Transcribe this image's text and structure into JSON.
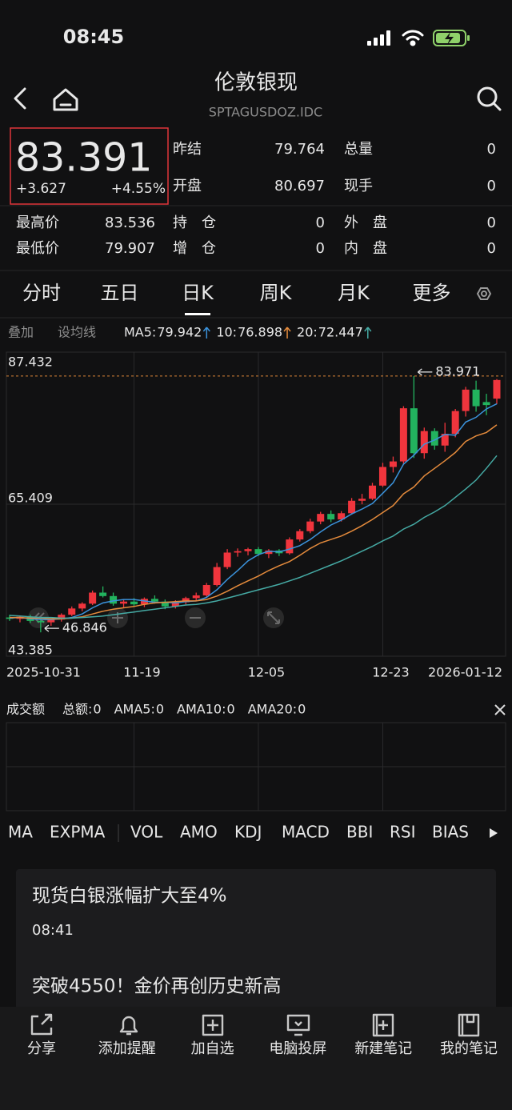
{
  "status_bar": {
    "time": "08:45"
  },
  "header": {
    "title": "伦敦银现",
    "subtitle": "SPTAGUSDOZ.IDC"
  },
  "quote": {
    "price": 83.391,
    "change": "+3.627",
    "change_pct": "+4.55%",
    "stats_top": [
      [
        {
          "label": "昨结",
          "value": 79.764
        },
        {
          "label": "总量",
          "value": 0
        }
      ],
      [
        {
          "label": "开盘",
          "value": 80.697
        },
        {
          "label": "现手",
          "value": 0
        }
      ]
    ],
    "stats_bottom": [
      [
        {
          "label": "最高价",
          "value": 83.536
        },
        {
          "label": "持　仓",
          "value": 0
        },
        {
          "label": "外　盘",
          "value": 0
        }
      ],
      [
        {
          "label": "最低价",
          "value": 79.907
        },
        {
          "label": "增　仓",
          "value": 0
        },
        {
          "label": "内　盘",
          "value": 0
        }
      ]
    ]
  },
  "period_tabs": {
    "items": [
      "分时",
      "五日",
      "日K",
      "周K",
      "月K",
      "更多"
    ],
    "active": 2
  },
  "ma_bar": {
    "overlay": "叠加",
    "set_ma": "设均线"
  },
  "chart_data": {
    "type": "candlestick",
    "categories": [
      "2025-10-31",
      null,
      null,
      null,
      null,
      null,
      null,
      null,
      null,
      null,
      null,
      null,
      "11-19",
      null,
      null,
      null,
      null,
      null,
      null,
      null,
      null,
      null,
      null,
      null,
      "12-05",
      null,
      null,
      null,
      null,
      null,
      null,
      null,
      null,
      null,
      null,
      null,
      "12-23",
      null,
      null,
      null,
      null,
      null,
      null,
      null,
      null,
      null,
      null,
      "2026-01-12"
    ],
    "open": [
      49.0,
      48.8,
      49.1,
      48.5,
      48.3,
      48.7,
      49.4,
      50.3,
      51.0,
      52.6,
      52.1,
      51.0,
      51.3,
      50.9,
      51.7,
      51.3,
      50.6,
      51.2,
      51.8,
      52.2,
      53.7,
      56.3,
      58.4,
      58.6,
      58.9,
      58.2,
      58.7,
      58.3,
      60.3,
      61.5,
      62.9,
      64.0,
      63.2,
      64.1,
      65.9,
      66.2,
      68.1,
      70.8,
      71.6,
      79.3,
      72.8,
      76.0,
      73.9,
      75.6,
      78.9,
      82.0,
      80.2,
      80.697
    ],
    "high": [
      49.4,
      49.3,
      49.4,
      48.9,
      48.9,
      49.6,
      50.6,
      51.2,
      52.9,
      53.5,
      52.6,
      51.6,
      51.8,
      51.9,
      52.2,
      51.6,
      51.5,
      52.0,
      52.6,
      54.0,
      56.9,
      58.9,
      59.0,
      59.1,
      59.2,
      58.9,
      58.9,
      60.6,
      61.8,
      63.3,
      64.3,
      64.5,
      64.4,
      66.3,
      66.9,
      68.5,
      71.4,
      72.3,
      79.6,
      83.971,
      76.5,
      76.4,
      77.2,
      79.2,
      82.4,
      83.3,
      81.4,
      83.536
    ],
    "low": [
      48.5,
      48.3,
      48.2,
      46.846,
      47.8,
      48.4,
      49.2,
      49.9,
      50.8,
      51.9,
      50.7,
      50.4,
      50.6,
      50.5,
      51.0,
      50.2,
      50.3,
      50.9,
      51.4,
      52.0,
      53.5,
      56.0,
      57.8,
      58.0,
      57.9,
      57.6,
      57.9,
      58.1,
      60.0,
      61.2,
      62.5,
      62.8,
      62.9,
      63.9,
      65.4,
      66.0,
      67.9,
      70.0,
      71.2,
      72.1,
      72.0,
      73.3,
      73.0,
      75.1,
      78.1,
      78.8,
      78.3,
      79.907
    ],
    "close": [
      48.8,
      49.1,
      48.5,
      48.3,
      48.7,
      49.4,
      50.3,
      51.0,
      52.6,
      52.1,
      51.0,
      51.3,
      50.9,
      51.7,
      51.3,
      50.6,
      51.2,
      51.8,
      52.2,
      53.7,
      56.3,
      58.4,
      58.6,
      58.9,
      58.2,
      58.7,
      58.3,
      60.3,
      61.5,
      62.9,
      64.0,
      63.2,
      64.1,
      65.9,
      66.2,
      68.1,
      70.8,
      71.6,
      79.3,
      72.8,
      76.0,
      73.9,
      75.6,
      78.9,
      82.0,
      79.6,
      79.764,
      83.391
    ],
    "up_color": "#f0353d",
    "down_color": "#22b35e",
    "max_line_color": "#e0873a",
    "ylim": [
      43.385,
      87.432
    ],
    "yticks": [
      87.432,
      65.409,
      43.385
    ],
    "moving_averages": [
      {
        "name": "MA5:",
        "value": 79.942,
        "color": "#3b93dc",
        "values": [
          48.9,
          49.0,
          48.8,
          48.7,
          48.7,
          48.8,
          49.0,
          49.5,
          50.4,
          51.1,
          51.4,
          51.6,
          51.6,
          51.4,
          51.2,
          51.2,
          51.1,
          51.3,
          51.4,
          51.9,
          53.0,
          54.5,
          55.8,
          57.2,
          58.1,
          58.6,
          58.5,
          58.9,
          59.4,
          60.3,
          61.4,
          62.4,
          63.1,
          64.0,
          64.7,
          65.5,
          67.0,
          68.5,
          71.2,
          72.5,
          74.1,
          74.7,
          75.5,
          75.4,
          77.3,
          78.0,
          79.2,
          79.942
        ]
      },
      {
        "name": "10:",
        "value": 76.898,
        "color": "#e58b3c",
        "values": [
          49.0,
          49.0,
          48.9,
          48.9,
          48.8,
          48.8,
          48.9,
          49.1,
          49.5,
          49.9,
          50.2,
          50.4,
          50.6,
          50.9,
          51.1,
          51.2,
          51.3,
          51.4,
          51.4,
          51.6,
          52.1,
          52.8,
          53.6,
          54.3,
          55.0,
          55.8,
          56.5,
          57.1,
          58.0,
          59.0,
          59.8,
          60.3,
          60.8,
          61.5,
          62.3,
          63.2,
          64.2,
          65.2,
          66.9,
          67.9,
          69.5,
          70.6,
          71.7,
          72.9,
          74.5,
          75.3,
          75.8,
          76.898
        ]
      },
      {
        "name": "20:",
        "value": 72.447,
        "color": "#45aaa4",
        "values": [
          49.3,
          49.2,
          49.1,
          49.0,
          49.0,
          48.9,
          48.9,
          49.0,
          49.1,
          49.2,
          49.4,
          49.6,
          49.8,
          50.0,
          50.2,
          50.4,
          50.6,
          50.8,
          50.9,
          51.1,
          51.4,
          51.8,
          52.2,
          52.6,
          53.0,
          53.4,
          53.8,
          54.3,
          54.8,
          55.4,
          56.0,
          56.6,
          57.2,
          57.9,
          58.6,
          59.3,
          60.1,
          60.8,
          61.8,
          62.5,
          63.5,
          64.3,
          65.2,
          66.4,
          67.6,
          68.9,
          70.6,
          72.447
        ]
      }
    ]
  },
  "volume_panel": {
    "title": "成交额",
    "items": [
      {
        "label": "总额:",
        "value": 0,
        "color": "#8a8a8a"
      },
      {
        "label": "AMA5:",
        "value": 0,
        "color": "#3b93dc"
      },
      {
        "label": "AMA10:",
        "value": 0,
        "color": "#e58b3c"
      },
      {
        "label": "AMA20:",
        "value": 0,
        "color": "#45aaa4"
      }
    ]
  },
  "indicator_tabs": {
    "items": [
      "MA",
      "EXPMA",
      "VOL",
      "AMO",
      "KDJ",
      "MACD",
      "BBI",
      "RSI",
      "BIAS"
    ],
    "active": [
      0,
      3
    ]
  },
  "news": [
    {
      "title": "现货白银涨幅扩大至4%",
      "time": "08:41"
    },
    {
      "title": "突破4550！金价再创历史新高"
    }
  ],
  "bottom_nav": [
    "分享",
    "添加提醒",
    "加自选",
    "电脑投屏",
    "新建笔记",
    "我的笔记"
  ]
}
